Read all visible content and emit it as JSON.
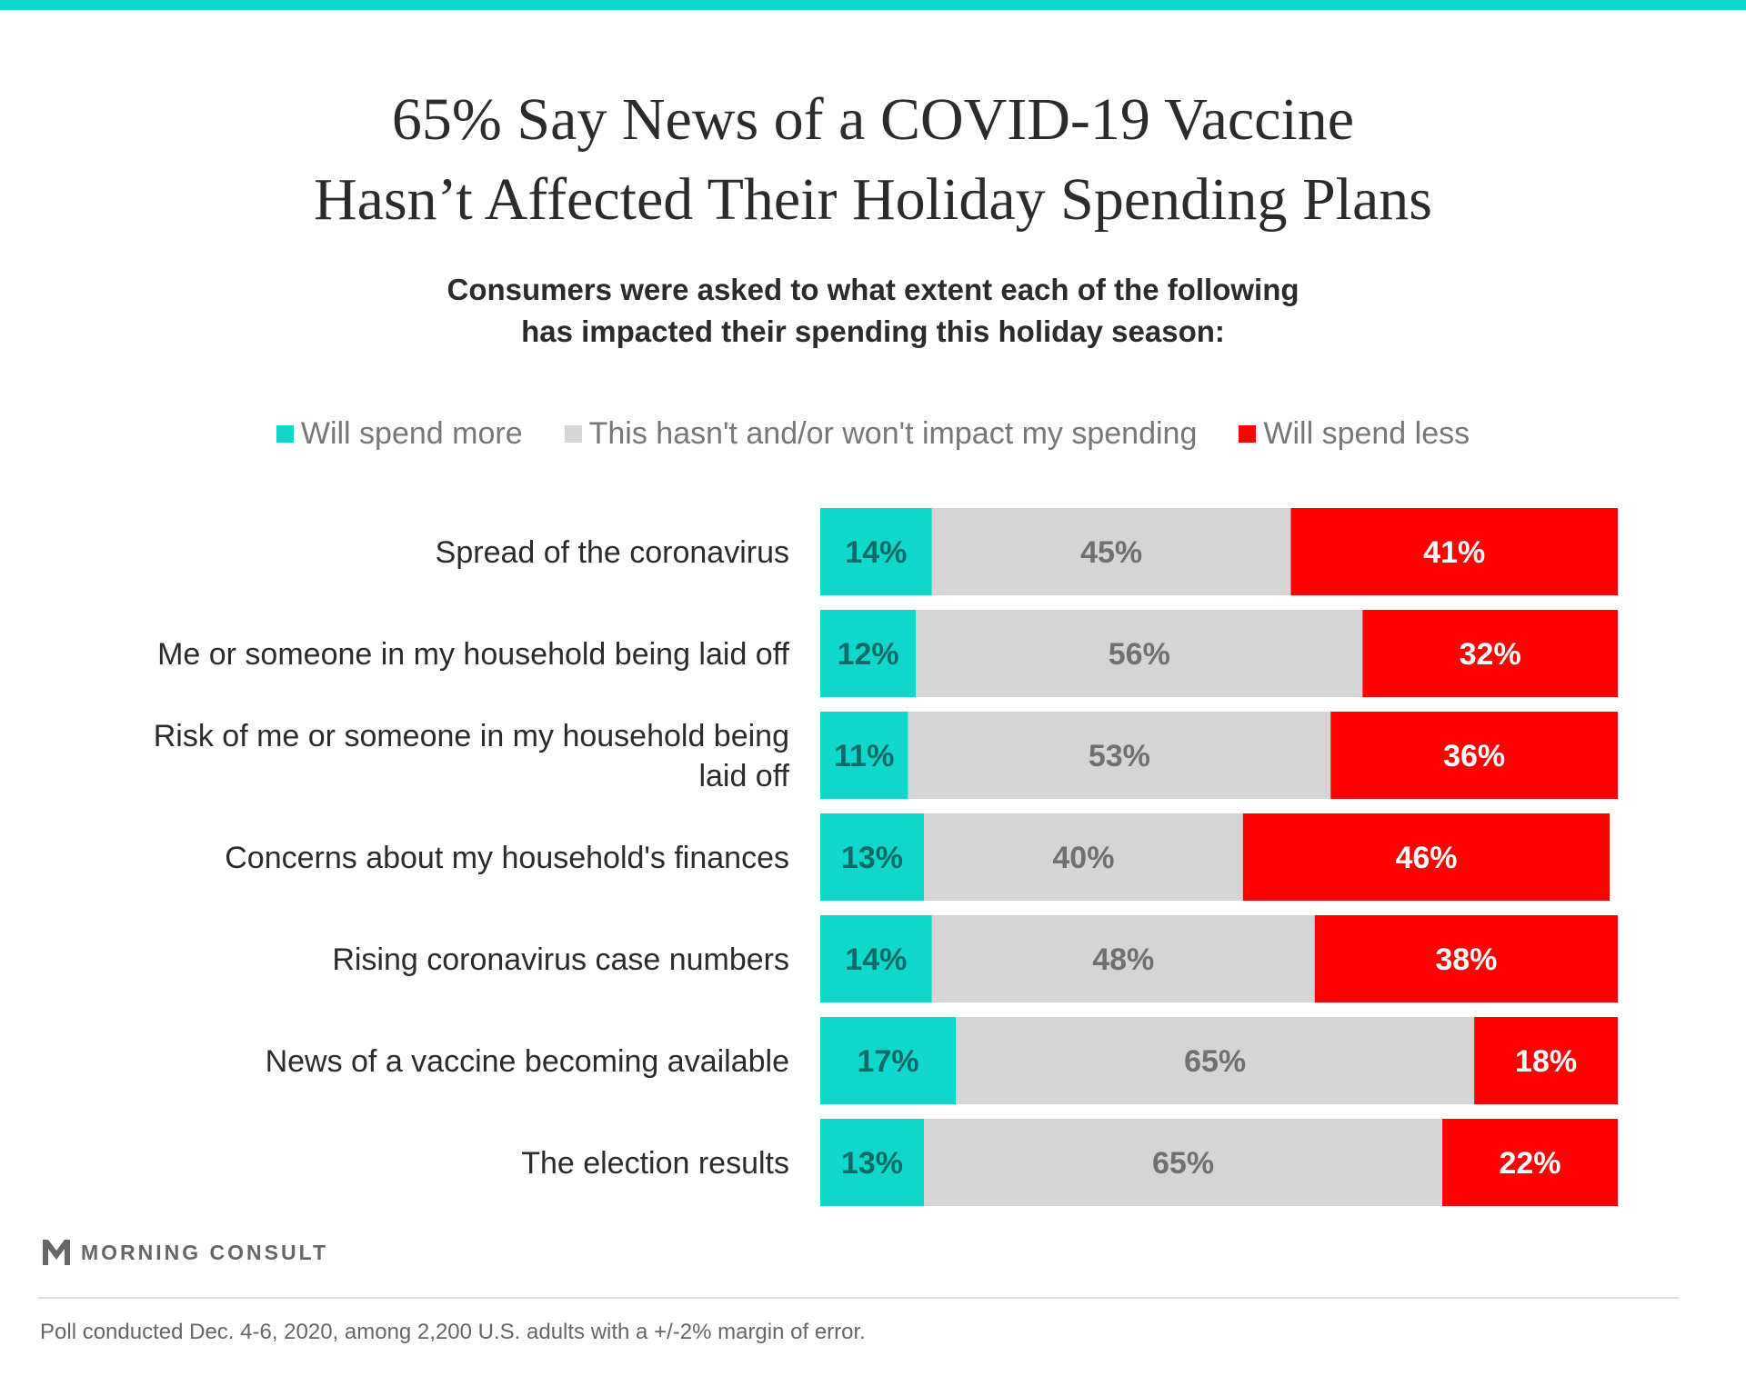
{
  "header": {
    "title_line1": "65% Say News of a COVID-19 Vaccine",
    "title_line2": "Hasn’t Affected Their Holiday Spending Plans",
    "subtitle_line1": "Consumers were asked to what extent each of the following",
    "subtitle_line2": "has impacted their spending this holiday season:"
  },
  "colors": {
    "more": "#0fd7cc",
    "neutral": "#d5d5d5",
    "less": "#ff0000",
    "more_text": "#0b6b66",
    "neutral_text": "#707070",
    "less_text": "#ffffff"
  },
  "chart_data": {
    "type": "bar",
    "orientation": "horizontal",
    "stacked": true,
    "title": "65% Say News of a COVID-19 Vaccine Hasn’t Affected Their Holiday Spending Plans",
    "subtitle": "Consumers were asked to what extent each of the following has impacted their spending this holiday season:",
    "xlim": [
      0,
      100
    ],
    "grid": false,
    "legend_position": "top",
    "categories": [
      [
        "Spread of the coronavirus"
      ],
      [
        "Me or someone in my household being laid off"
      ],
      [
        "Risk of me or someone in my household being",
        "laid off"
      ],
      [
        "Concerns about my household's finances"
      ],
      [
        "Rising coronavirus case numbers"
      ],
      [
        "News of a vaccine becoming available"
      ],
      [
        "The election results"
      ]
    ],
    "series": [
      {
        "name": "Will spend more",
        "values": [
          14,
          12,
          11,
          13,
          14,
          17,
          13
        ]
      },
      {
        "name": "This hasn't and/or won't impact my spending",
        "values": [
          45,
          56,
          53,
          40,
          48,
          65,
          65
        ]
      },
      {
        "name": "Will spend less",
        "values": [
          41,
          32,
          36,
          46,
          38,
          18,
          22
        ]
      }
    ]
  },
  "footer": {
    "brand": "MORNING CONSULT",
    "note": "Poll conducted Dec. 4-6, 2020, among 2,200 U.S. adults with a +/-2% margin of error."
  }
}
